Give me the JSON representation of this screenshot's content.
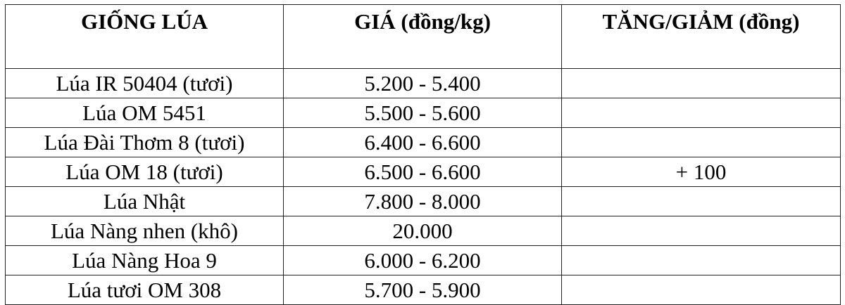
{
  "headers": [
    "GIỐNG LÚA",
    "GIÁ (đồng/kg)",
    "TĂNG/GIẢM (đồng)"
  ],
  "rows": [
    {
      "variety": "Lúa IR 50404 (tươi)",
      "price": "5.200 - 5.400",
      "change": ""
    },
    {
      "variety": "Lúa OM 5451",
      "price": "5.500 - 5.600",
      "change": ""
    },
    {
      "variety": "Lúa Đài Thơm 8 (tươi)",
      "price": "6.400 - 6.600",
      "change": ""
    },
    {
      "variety": "Lúa OM 18 (tươi)",
      "price": "6.500 - 6.600",
      "change": "+ 100"
    },
    {
      "variety": "Lúa Nhật",
      "price": "7.800 - 8.000",
      "change": ""
    },
    {
      "variety": "Lúa Nàng nhen (khô)",
      "price": "20.000",
      "change": ""
    },
    {
      "variety": "Lúa Nàng Hoa 9",
      "price": "6.000 - 6.200",
      "change": ""
    },
    {
      "variety": "Lúa tươi OM 308",
      "price": "5.700 - 5.900",
      "change": ""
    }
  ]
}
